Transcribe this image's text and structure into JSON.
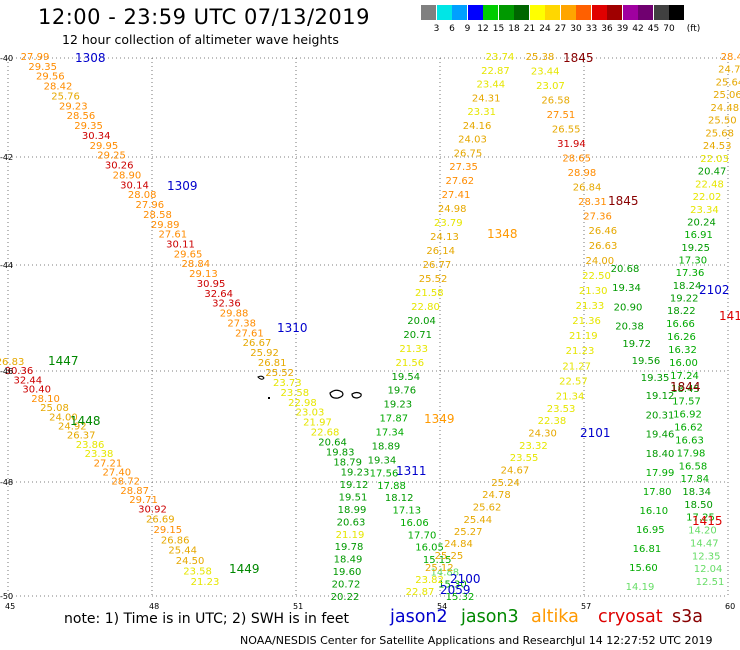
{
  "title": "12:00 - 23:59 UTC 07/13/2019",
  "subtitle": "12 hour collection of altimeter wave heights",
  "color_scale": {
    "unit": "(ft)",
    "values": [
      "3",
      "6",
      "9",
      "12",
      "15",
      "18",
      "21",
      "24",
      "27",
      "30",
      "33",
      "36",
      "39",
      "42",
      "45",
      "70"
    ],
    "colors": [
      "#808080",
      "#00e6e6",
      "#00a0ff",
      "#0000ff",
      "#00cc00",
      "#009900",
      "#006600",
      "#ffff00",
      "#ffd700",
      "#ffa500",
      "#ff6000",
      "#e00000",
      "#a00000",
      "#a000a0",
      "#700070",
      "#404040",
      "#000000"
    ]
  },
  "lat_labels": [
    "-40",
    "-42",
    "-44",
    "-46",
    "-48",
    "-50"
  ],
  "lon_labels": [
    "45",
    "48",
    "51",
    "54",
    "57",
    "60"
  ],
  "note": "note: 1) Time is in UTC; 2) SWH is in feet",
  "satellites": [
    {
      "name": "jason2",
      "color": "#0000cc"
    },
    {
      "name": "jason3",
      "color": "#008800"
    },
    {
      "name": "altika",
      "color": "#ff9900"
    },
    {
      "name": "cryosat",
      "color": "#dd0000"
    },
    {
      "name": "s3a",
      "color": "#880000"
    }
  ],
  "footer": {
    "center": "NOAA/NESDIS Center for Satellite Applications and Research",
    "date": "Jul 14 12:27:52 UTC 2019"
  },
  "pass_labels": [
    "1308",
    "1309",
    "1310",
    "1311",
    "1348",
    "1349",
    "1447",
    "1448",
    "1449",
    "1845",
    "1845",
    "1844",
    "2101",
    "2102",
    "2100",
    "2059",
    "1415",
    "141"
  ],
  "tracks": [
    {
      "name": "track-1308-1310",
      "values": [
        "27.99",
        "29.35",
        "29.56",
        "28.42",
        "25.76",
        "29.23",
        "28.56",
        "29.35",
        "30.34",
        "29.95",
        "29.25",
        "30.26",
        "28.90",
        "30.14",
        "28.08",
        "27.96",
        "28.58",
        "29.89",
        "27.61",
        "30.11",
        "29.65",
        "28.84",
        "29.13",
        "30.95",
        "32.64",
        "32.36",
        "29.88",
        "27.38",
        "27.61",
        "26.67",
        "25.92",
        "26.81",
        "25.52",
        "23.73",
        "23.58",
        "22.98",
        "23.03",
        "21.97",
        "22.68",
        "20.64",
        "19.83",
        "18.79",
        "19.23",
        "19.12",
        "19.51",
        "18.99",
        "20.63",
        "21.19",
        "19.78",
        "18.49",
        "19.60",
        "20.72",
        "20.22"
      ]
    },
    {
      "name": "track-1447-1449",
      "values": [
        "26.83",
        "30.36",
        "32.44",
        "30.40",
        "28.10",
        "25.08",
        "24.00",
        "24.92",
        "26.37",
        "23.86",
        "23.38",
        "27.21",
        "27.40",
        "28.72",
        "28.87",
        "29.71",
        "30.92",
        "26.69",
        "29.15",
        "26.86",
        "25.44",
        "24.50",
        "23.58",
        "21.23"
      ]
    },
    {
      "name": "track-1348-1349",
      "values": [
        "23.74",
        "22.87",
        "23.44",
        "24.31",
        "23.31",
        "24.16",
        "24.03",
        "26.75",
        "27.35",
        "27.62",
        "27.41",
        "24.98",
        "23.79",
        "24.13",
        "26.14",
        "26.77",
        "25.52",
        "21.58",
        "22.80",
        "20.04",
        "20.71",
        "21.33",
        "21.56",
        "19.54",
        "19.76",
        "19.23",
        "17.87",
        "17.34",
        "18.89",
        "19.34",
        "17.56",
        "17.88",
        "18.12",
        "17.13",
        "16.06",
        "17.70",
        "16.05",
        "15.15",
        "14.88",
        "15.30",
        "15.32"
      ]
    },
    {
      "name": "track-1845-2101",
      "values": [
        "25.38",
        "23.44",
        "23.07",
        "26.58",
        "27.51",
        "26.55",
        "31.94",
        "28.65",
        "28.98",
        "26.84",
        "28.31",
        "27.36",
        "26.46",
        "26.63",
        "24.00",
        "22.50",
        "21.30",
        "21.33",
        "21.36",
        "21.19",
        "21.23",
        "21.27",
        "22.57",
        "21.34",
        "23.53",
        "22.38",
        "24.30",
        "23.32",
        "23.55",
        "24.67",
        "25.24",
        "24.78",
        "25.62",
        "25.44",
        "25.27",
        "24.84",
        "25.25",
        "25.12",
        "23.82",
        "22.87"
      ]
    },
    {
      "name": "track-2102-1415",
      "values": [
        "28.41",
        "24.77",
        "25.64",
        "25.06",
        "24.48",
        "25.50",
        "25.68",
        "24.53",
        "22.03",
        "20.47",
        "22.48",
        "22.02",
        "23.34",
        "20.24",
        "16.91",
        "19.25",
        "17.30",
        "17.36",
        "18.24",
        "19.22",
        "18.22",
        "16.66",
        "16.26",
        "16.32",
        "16.00",
        "17.24",
        "18.45",
        "17.57",
        "16.92",
        "16.62",
        "16.63",
        "17.98",
        "16.58",
        "17.84",
        "18.34",
        "18.50",
        "17.25",
        "14.20",
        "14.47",
        "12.35",
        "12.04",
        "12.51"
      ]
    },
    {
      "name": "track-jason3-east",
      "values": [
        "20.68",
        "19.34",
        "20.90",
        "20.38",
        "19.72",
        "19.56",
        "19.35",
        "19.12",
        "20.31",
        "19.46",
        "18.40",
        "17.99",
        "17.80",
        "16.10",
        "16.95",
        "16.81",
        "15.60",
        "14.19"
      ]
    }
  ]
}
